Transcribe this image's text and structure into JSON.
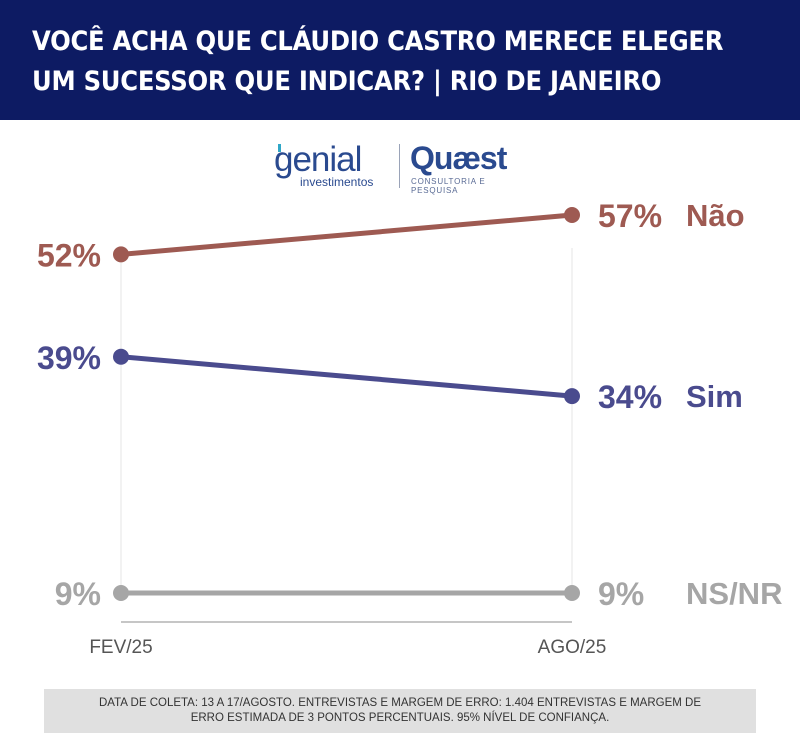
{
  "header": {
    "title_line1": "VOCÊ ACHA QUE CLÁUDIO CASTRO MERECE ELEGER",
    "title_line2": "UM SUCESSOR QUE INDICAR? | RIO DE JANEIRO"
  },
  "logos": {
    "genial_name": "genial",
    "genial_sub": "investimentos",
    "quaest_name": "Quæst",
    "quaest_sub": "CONSULTORIA E PESQUISA"
  },
  "chart_data": {
    "type": "line",
    "categories": [
      "FEV/25",
      "AGO/25"
    ],
    "ylim": [
      0,
      60
    ],
    "grid": false,
    "series": [
      {
        "name": "Não",
        "values": [
          52,
          57
        ],
        "labels": [
          "52%",
          "57%"
        ],
        "color": "#9e5a52"
      },
      {
        "name": "Sim",
        "values": [
          39,
          34
        ],
        "labels": [
          "39%",
          "34%"
        ],
        "color": "#4a4b8e"
      },
      {
        "name": "NS/NR",
        "values": [
          9,
          9
        ],
        "labels": [
          "9%",
          "9%"
        ],
        "color": "#a6a6a6"
      }
    ]
  },
  "footnote": {
    "line1": "DATA DE COLETA: 13 A 17/AGOSTO. ENTREVISTAS E MARGEM DE ERRO: 1.404 ENTREVISTAS E MARGEM DE",
    "line2": "ERRO ESTIMADA DE 3 PONTOS PERCENTUAIS. 95% NÍVEL DE CONFIANÇA."
  }
}
